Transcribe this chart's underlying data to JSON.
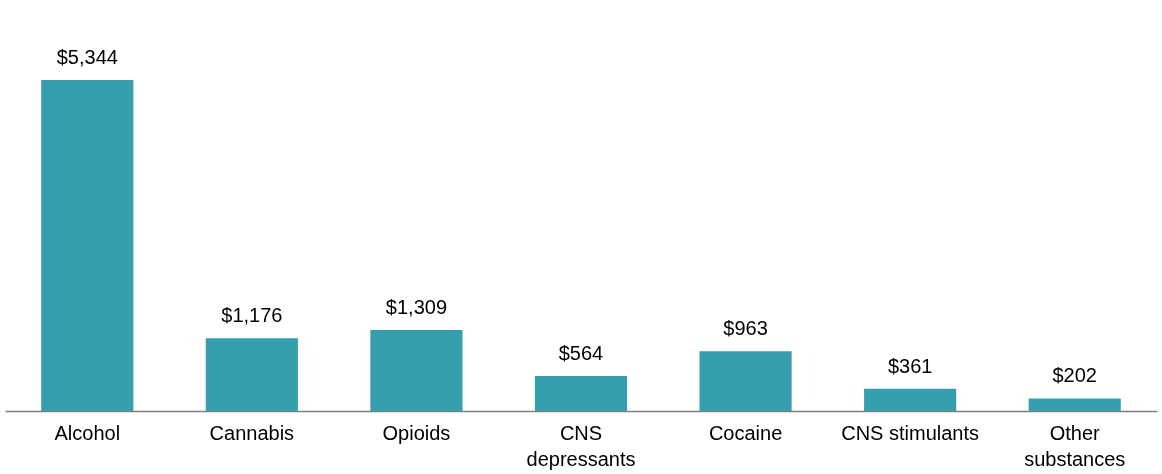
{
  "chart_data": {
    "type": "bar",
    "categories": [
      "Alcohol",
      "Cannabis",
      "Opioids",
      "CNS depressants",
      "Cocaine",
      "CNS stimulants",
      "Other substances"
    ],
    "values": [
      5344,
      1176,
      1309,
      564,
      963,
      361,
      202
    ],
    "value_labels": [
      "$5,344",
      "$1,176",
      "$1,309",
      "$564",
      "$963",
      "$361",
      "$202"
    ],
    "color": "#369fae"
  }
}
